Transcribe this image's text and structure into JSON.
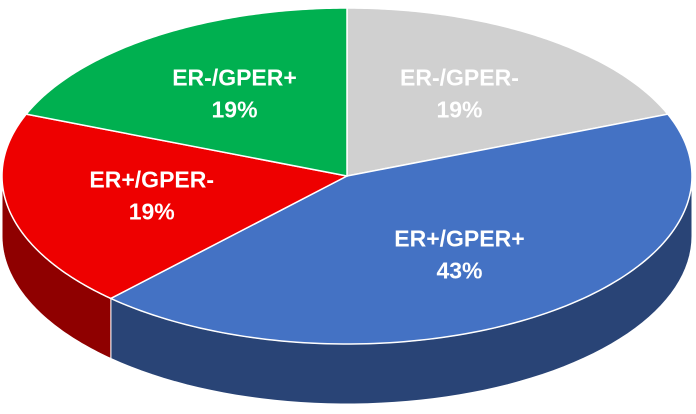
{
  "chart_data": {
    "type": "pie",
    "style": "3d",
    "categories": [
      "ER-/GPER-",
      "ER+/GPER+",
      "ER+/GPER-",
      "ER-/GPER+"
    ],
    "values": [
      19,
      43,
      19,
      19
    ],
    "value_labels": [
      "19%",
      "43%",
      "19%",
      "19%"
    ],
    "colors": [
      "#d0d0d0",
      "#4472c4",
      "#ee0000",
      "#00b050"
    ]
  }
}
